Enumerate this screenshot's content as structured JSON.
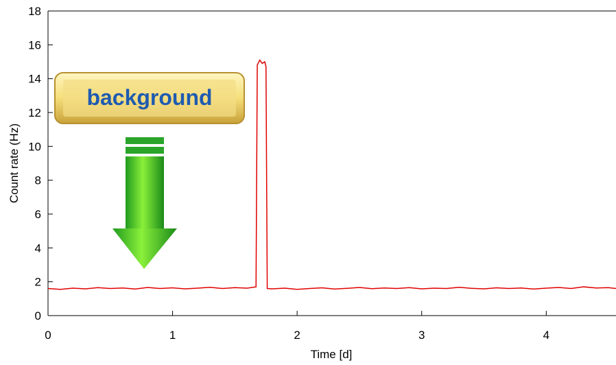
{
  "chart_data": {
    "type": "line",
    "x_label": "Time [d]",
    "y_label": "Count rate (Hz)",
    "annotation": "background",
    "xlim": [
      0,
      4.56
    ],
    "ylim": [
      0,
      18
    ],
    "xticks": [
      0,
      1,
      2,
      3,
      4
    ],
    "yticks": [
      0,
      2,
      4,
      6,
      8,
      10,
      12,
      14,
      16,
      18
    ],
    "series": [
      {
        "color": "#e00000",
        "x": [
          0,
          0.1,
          0.2,
          0.3,
          0.4,
          0.5,
          0.6,
          0.7,
          0.8,
          0.9,
          1.0,
          1.1,
          1.2,
          1.3,
          1.4,
          1.5,
          1.6,
          1.67,
          1.68,
          1.7,
          1.72,
          1.74,
          1.75,
          1.76,
          1.8,
          1.9,
          2.0,
          2.1,
          2.2,
          2.3,
          2.4,
          2.5,
          2.6,
          2.7,
          2.8,
          2.9,
          3.0,
          3.1,
          3.2,
          3.3,
          3.4,
          3.5,
          3.6,
          3.7,
          3.8,
          3.9,
          4.0,
          4.1,
          4.2,
          4.3,
          4.4,
          4.5,
          4.56
        ],
        "values": [
          1.6,
          1.55,
          1.62,
          1.58,
          1.65,
          1.6,
          1.63,
          1.57,
          1.66,
          1.6,
          1.64,
          1.58,
          1.62,
          1.67,
          1.6,
          1.65,
          1.62,
          1.7,
          14.8,
          15.1,
          14.9,
          15.0,
          14.7,
          1.6,
          1.58,
          1.62,
          1.55,
          1.6,
          1.64,
          1.57,
          1.61,
          1.66,
          1.59,
          1.63,
          1.6,
          1.65,
          1.58,
          1.62,
          1.6,
          1.67,
          1.61,
          1.58,
          1.64,
          1.6,
          1.63,
          1.57,
          1.62,
          1.66,
          1.6,
          1.7,
          1.63,
          1.65,
          1.6
        ]
      }
    ]
  }
}
